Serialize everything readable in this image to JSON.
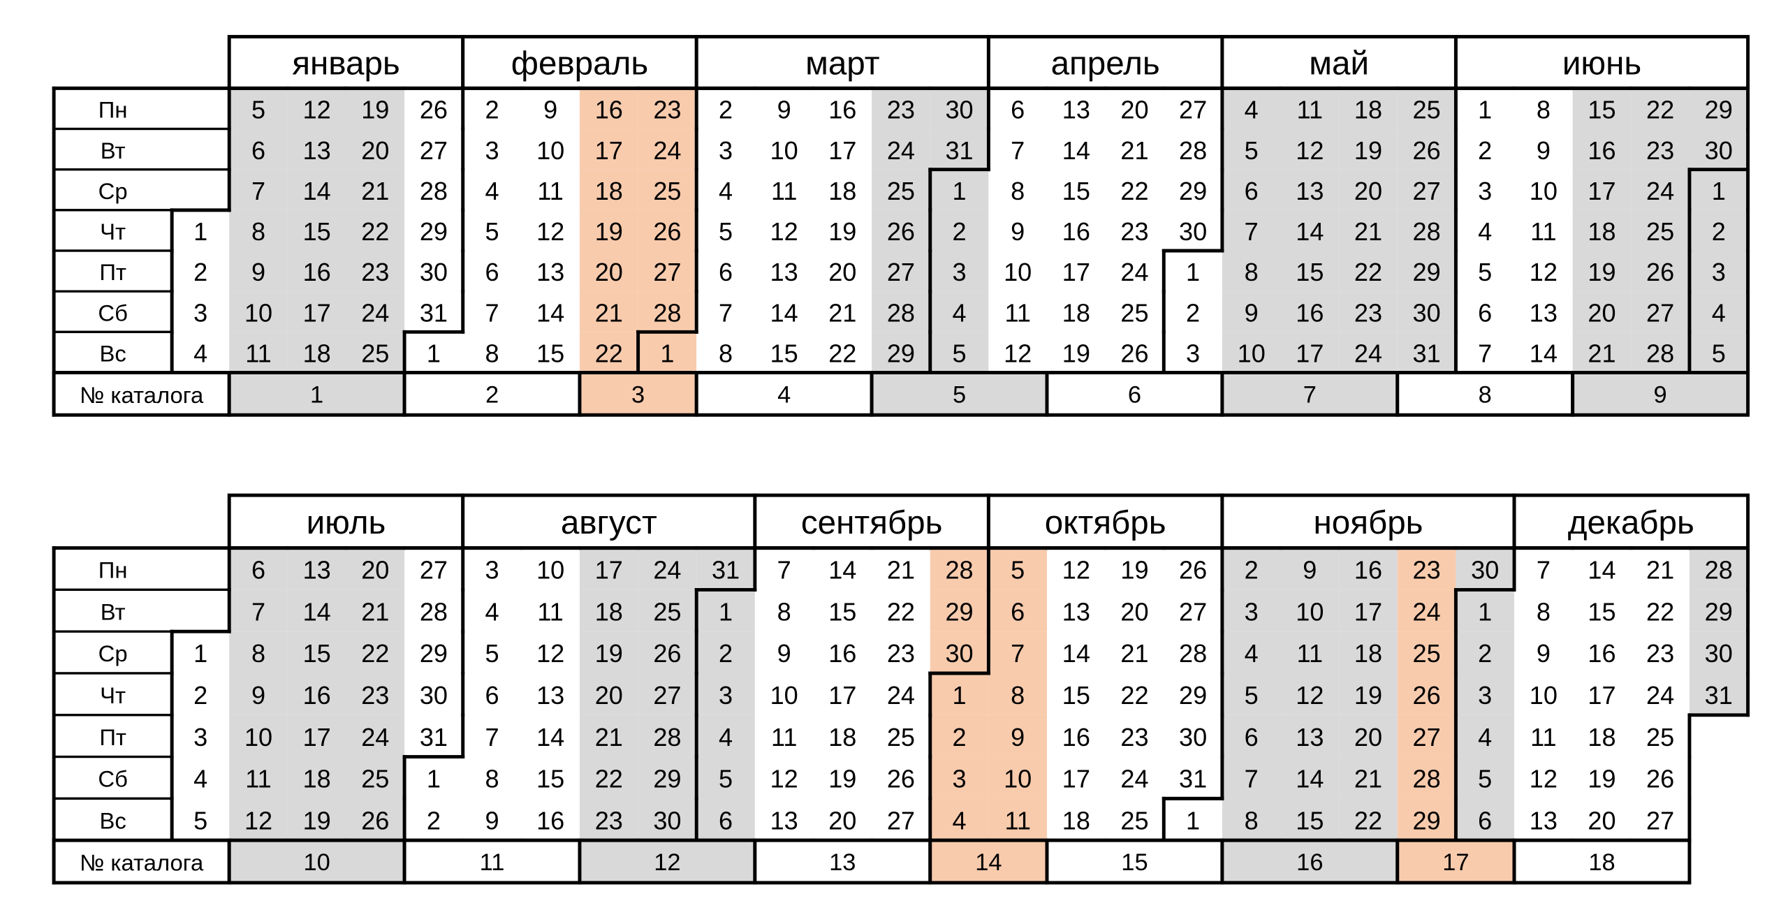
{
  "weekdays": [
    "Пн",
    "Вт",
    "Ср",
    "Чт",
    "Пт",
    "Сб",
    "Вс"
  ],
  "catalog_label": "№ каталога",
  "blocks": [
    {
      "lead": {
        "days": [
          null,
          null,
          null,
          1,
          2,
          3,
          4
        ],
        "fill": "#ffffff"
      },
      "months": [
        {
          "name": "январь",
          "weeks": [
            {
              "days": [
                5,
                6,
                7,
                8,
                9,
                10,
                11
              ],
              "fill": "#d9d9d9"
            },
            {
              "days": [
                12,
                13,
                14,
                15,
                16,
                17,
                18
              ],
              "fill": "#d9d9d9"
            },
            {
              "days": [
                19,
                20,
                21,
                22,
                23,
                24,
                25
              ],
              "fill": "#d9d9d9"
            },
            {
              "days": [
                26,
                27,
                28,
                29,
                30,
                31,
                1
              ],
              "fill": "#ffffff"
            }
          ]
        },
        {
          "name": "февраль",
          "weeks": [
            {
              "days": [
                2,
                3,
                4,
                5,
                6,
                7,
                8
              ],
              "fill": "#ffffff"
            },
            {
              "days": [
                9,
                10,
                11,
                12,
                13,
                14,
                15
              ],
              "fill": "#ffffff"
            },
            {
              "days": [
                16,
                17,
                18,
                19,
                20,
                21,
                22
              ],
              "fill": "#f8cbad"
            },
            {
              "days": [
                23,
                24,
                25,
                26,
                27,
                28,
                1
              ],
              "fill": "#f8cbad"
            }
          ]
        },
        {
          "name": "март",
          "weeks": [
            {
              "days": [
                2,
                3,
                4,
                5,
                6,
                7,
                8
              ],
              "fill": "#ffffff"
            },
            {
              "days": [
                9,
                10,
                11,
                12,
                13,
                14,
                15
              ],
              "fill": "#ffffff"
            },
            {
              "days": [
                16,
                17,
                18,
                19,
                20,
                21,
                22
              ],
              "fill": "#ffffff"
            },
            {
              "days": [
                23,
                24,
                25,
                26,
                27,
                28,
                29
              ],
              "fill": "#d9d9d9"
            },
            {
              "days": [
                30,
                31,
                1,
                2,
                3,
                4,
                5
              ],
              "fill": "#d9d9d9"
            }
          ]
        },
        {
          "name": "апрель",
          "weeks": [
            {
              "days": [
                6,
                7,
                8,
                9,
                10,
                11,
                12
              ],
              "fill": "#ffffff"
            },
            {
              "days": [
                13,
                14,
                15,
                16,
                17,
                18,
                19
              ],
              "fill": "#ffffff"
            },
            {
              "days": [
                20,
                21,
                22,
                23,
                24,
                25,
                26
              ],
              "fill": "#ffffff"
            },
            {
              "days": [
                27,
                28,
                29,
                30,
                1,
                2,
                3
              ],
              "fill": "#ffffff"
            }
          ]
        },
        {
          "name": "май",
          "weeks": [
            {
              "days": [
                4,
                5,
                6,
                7,
                8,
                9,
                10
              ],
              "fill": "#d9d9d9"
            },
            {
              "days": [
                11,
                12,
                13,
                14,
                15,
                16,
                17
              ],
              "fill": "#d9d9d9"
            },
            {
              "days": [
                18,
                19,
                20,
                21,
                22,
                23,
                24
              ],
              "fill": "#d9d9d9"
            },
            {
              "days": [
                25,
                26,
                27,
                28,
                29,
                30,
                31
              ],
              "fill": "#d9d9d9"
            }
          ]
        },
        {
          "name": "июнь",
          "weeks": [
            {
              "days": [
                1,
                2,
                3,
                4,
                5,
                6,
                7
              ],
              "fill": "#ffffff"
            },
            {
              "days": [
                8,
                9,
                10,
                11,
                12,
                13,
                14
              ],
              "fill": "#ffffff"
            },
            {
              "days": [
                15,
                16,
                17,
                18,
                19,
                20,
                21
              ],
              "fill": "#d9d9d9"
            },
            {
              "days": [
                22,
                23,
                24,
                25,
                26,
                27,
                28
              ],
              "fill": "#d9d9d9"
            },
            {
              "days": [
                29,
                30,
                1,
                2,
                3,
                4,
                5
              ],
              "fill": "#d9d9d9"
            }
          ]
        }
      ],
      "catalogs": [
        {
          "label": 1,
          "colspan": 3,
          "fill": "#d9d9d9"
        },
        {
          "label": 2,
          "colspan": 3,
          "fill": "#ffffff"
        },
        {
          "label": 3,
          "colspan": 2,
          "fill": "#f8cbad"
        },
        {
          "label": 4,
          "colspan": 3,
          "fill": "#ffffff"
        },
        {
          "label": 5,
          "colspan": 3,
          "fill": "#d9d9d9"
        },
        {
          "label": 6,
          "colspan": 3,
          "fill": "#ffffff"
        },
        {
          "label": 7,
          "colspan": 3,
          "fill": "#d9d9d9"
        },
        {
          "label": 8,
          "colspan": 3,
          "fill": "#ffffff"
        },
        {
          "label": 9,
          "colspan": 3,
          "fill": "#d9d9d9"
        }
      ]
    },
    {
      "lead": {
        "days": [
          null,
          null,
          1,
          2,
          3,
          4,
          5
        ],
        "fill": "#ffffff"
      },
      "months": [
        {
          "name": "июль",
          "weeks": [
            {
              "days": [
                6,
                7,
                8,
                9,
                10,
                11,
                12
              ],
              "fill": "#d9d9d9"
            },
            {
              "days": [
                13,
                14,
                15,
                16,
                17,
                18,
                19
              ],
              "fill": "#d9d9d9"
            },
            {
              "days": [
                20,
                21,
                22,
                23,
                24,
                25,
                26
              ],
              "fill": "#d9d9d9"
            },
            {
              "days": [
                27,
                28,
                29,
                30,
                31,
                1,
                2
              ],
              "fill": "#ffffff"
            }
          ]
        },
        {
          "name": "август",
          "weeks": [
            {
              "days": [
                3,
                4,
                5,
                6,
                7,
                8,
                9
              ],
              "fill": "#ffffff"
            },
            {
              "days": [
                10,
                11,
                12,
                13,
                14,
                15,
                16
              ],
              "fill": "#ffffff"
            },
            {
              "days": [
                17,
                18,
                19,
                20,
                21,
                22,
                23
              ],
              "fill": "#d9d9d9"
            },
            {
              "days": [
                24,
                25,
                26,
                27,
                28,
                29,
                30
              ],
              "fill": "#d9d9d9"
            },
            {
              "days": [
                31,
                1,
                2,
                3,
                4,
                5,
                6
              ],
              "fill": "#d9d9d9"
            }
          ]
        },
        {
          "name": "сентябрь",
          "weeks": [
            {
              "days": [
                7,
                8,
                9,
                10,
                11,
                12,
                13
              ],
              "fill": "#ffffff"
            },
            {
              "days": [
                14,
                15,
                16,
                17,
                18,
                19,
                20
              ],
              "fill": "#ffffff"
            },
            {
              "days": [
                21,
                22,
                23,
                24,
                25,
                26,
                27
              ],
              "fill": "#ffffff"
            },
            {
              "days": [
                28,
                29,
                30,
                1,
                2,
                3,
                4
              ],
              "fill": "#f8cbad"
            }
          ]
        },
        {
          "name": "октябрь",
          "weeks": [
            {
              "days": [
                5,
                6,
                7,
                8,
                9,
                10,
                11
              ],
              "fill": "#f8cbad"
            },
            {
              "days": [
                12,
                13,
                14,
                15,
                16,
                17,
                18
              ],
              "fill": "#ffffff"
            },
            {
              "days": [
                19,
                20,
                21,
                22,
                23,
                24,
                25
              ],
              "fill": "#ffffff"
            },
            {
              "days": [
                26,
                27,
                28,
                29,
                30,
                31,
                1
              ],
              "fill": "#ffffff"
            }
          ]
        },
        {
          "name": "ноябрь",
          "weeks": [
            {
              "days": [
                2,
                3,
                4,
                5,
                6,
                7,
                8
              ],
              "fill": "#d9d9d9"
            },
            {
              "days": [
                9,
                10,
                11,
                12,
                13,
                14,
                15
              ],
              "fill": "#d9d9d9"
            },
            {
              "days": [
                16,
                17,
                18,
                19,
                20,
                21,
                22
              ],
              "fill": "#d9d9d9"
            },
            {
              "days": [
                23,
                24,
                25,
                26,
                27,
                28,
                29
              ],
              "fill": "#f8cbad"
            },
            {
              "days": [
                30,
                1,
                2,
                3,
                4,
                5,
                6
              ],
              "fill": "#d9d9d9"
            }
          ]
        },
        {
          "name": "декабрь",
          "weeks": [
            {
              "days": [
                7,
                8,
                9,
                10,
                11,
                12,
                13
              ],
              "fill": "#ffffff"
            },
            {
              "days": [
                14,
                15,
                16,
                17,
                18,
                19,
                20
              ],
              "fill": "#ffffff"
            },
            {
              "days": [
                21,
                22,
                23,
                24,
                25,
                26,
                27
              ],
              "fill": "#ffffff"
            },
            {
              "days": [
                28,
                29,
                30,
                31,
                null,
                null,
                null
              ],
              "fill": "#d9d9d9"
            }
          ]
        }
      ],
      "catalogs": [
        {
          "label": 10,
          "colspan": 3,
          "fill": "#d9d9d9"
        },
        {
          "label": 11,
          "colspan": 3,
          "fill": "#ffffff"
        },
        {
          "label": 12,
          "colspan": 3,
          "fill": "#d9d9d9"
        },
        {
          "label": 13,
          "colspan": 3,
          "fill": "#ffffff"
        },
        {
          "label": 14,
          "colspan": 2,
          "fill": "#f8cbad"
        },
        {
          "label": 15,
          "colspan": 3,
          "fill": "#ffffff"
        },
        {
          "label": 16,
          "colspan": 3,
          "fill": "#d9d9d9"
        },
        {
          "label": 17,
          "colspan": 2,
          "fill": "#f8cbad"
        },
        {
          "label": 18,
          "colspan": 3,
          "fill": "#ffffff"
        }
      ]
    }
  ]
}
